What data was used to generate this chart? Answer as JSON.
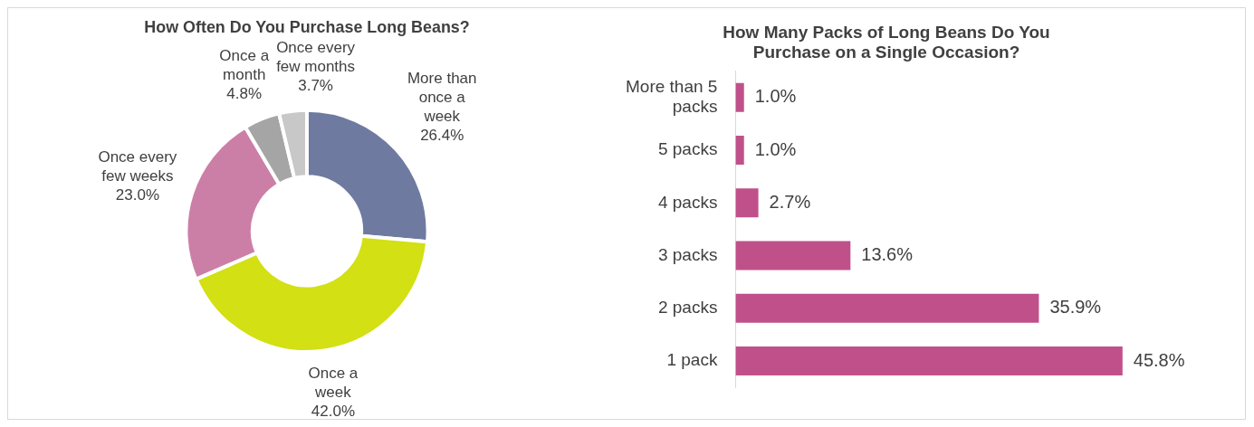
{
  "chart_data": [
    {
      "type": "donut",
      "title": "How Often Do You Purchase Long Beans?",
      "categories": [
        "More than once a week",
        "Once a week",
        "Once every few weeks",
        "Once a month",
        "Once every few months"
      ],
      "values": [
        26.4,
        42.0,
        23.0,
        4.8,
        3.7
      ],
      "value_labels": [
        "26.4%",
        "42.0%",
        "23.0%",
        "4.8%",
        "3.7%"
      ],
      "colors": [
        "#6f7aa0",
        "#d2e014",
        "#cc7fa6",
        "#a5a5a5",
        "#c8c8c8"
      ],
      "legend": false
    },
    {
      "type": "bar",
      "orientation": "horizontal",
      "title": "How Many Packs of Long Beans Do You Purchase on a Single Occasion?",
      "categories": [
        "More than 5 packs",
        "5 packs",
        "4 packs",
        "3 packs",
        "2 packs",
        "1 pack"
      ],
      "values": [
        1.0,
        1.0,
        2.7,
        13.6,
        35.9,
        45.8
      ],
      "value_labels": [
        "1.0%",
        "1.0%",
        "2.7%",
        "13.6%",
        "35.9%",
        "45.8%"
      ],
      "color": "#c0508a",
      "legend": false
    }
  ]
}
